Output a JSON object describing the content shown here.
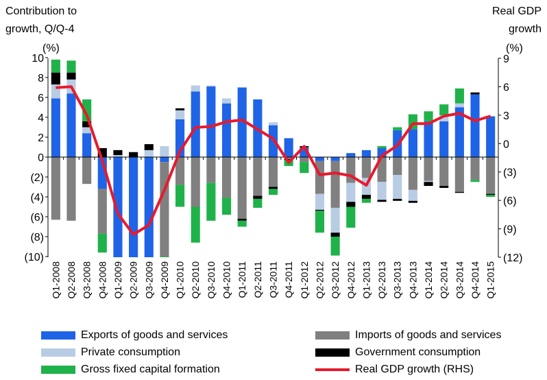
{
  "chart_data": {
    "type": "bar",
    "stacked": true,
    "left_axis_title_line1": "Contribution to",
    "left_axis_title_line2": "growth, Q/Q-4",
    "left_unit": "(%)",
    "right_axis_title_line1": "Real GDP",
    "right_axis_title_line2": "growth",
    "right_unit": "(%)",
    "ylim_left": [
      -10,
      10
    ],
    "ylim_right": [
      -12,
      9
    ],
    "yticks_left": [
      "10",
      "8",
      "6",
      "4",
      "2",
      "0",
      "(2)",
      "(4)",
      "(6)",
      "(8)",
      "(10)"
    ],
    "yticks_right": [
      "9",
      "6",
      "3",
      "0",
      "(3)",
      "(6)",
      "(9)",
      "(12)"
    ],
    "categories": [
      "Q1-2008",
      "Q2-2008",
      "Q3-2008",
      "Q4-2008",
      "Q1-2009",
      "Q2-2009",
      "Q3-2009",
      "Q4-2009",
      "Q1-2010",
      "Q2-2010",
      "Q3-2010",
      "Q4-2010",
      "Q1-2011",
      "Q2-2011",
      "Q3-2011",
      "Q4-2011",
      "Q1-2012",
      "Q2-2012",
      "Q3-2012",
      "Q4-2012",
      "Q1-2013",
      "Q2-2013",
      "Q3-2013",
      "Q4-2013",
      "Q1-2014",
      "Q2-2014",
      "Q3-2014",
      "Q4-2014",
      "Q1-2015"
    ],
    "series": [
      {
        "name": "Exports of goods and services",
        "color": "#1f64e6",
        "values": [
          5.9,
          6.4,
          2.4,
          -3.2,
          -10.5,
          -10.8,
          -10.5,
          -0.5,
          3.8,
          6.6,
          7.1,
          5.4,
          7.0,
          5.8,
          3.2,
          1.9,
          1.0,
          -0.4,
          -0.4,
          0.4,
          0.7,
          0.9,
          2.7,
          2.8,
          3.6,
          3.6,
          5.0,
          6.3,
          4.1
        ]
      },
      {
        "name": "Imports of goods and services",
        "color": "#808080",
        "values": [
          -6.3,
          -6.4,
          -2.7,
          -4.5,
          0,
          0,
          0,
          -9.5,
          -2.8,
          -5.0,
          -2.6,
          -4.1,
          -6.2,
          -3.9,
          -3.0,
          -0.2,
          -0.5,
          -3.3,
          -4.7,
          -2.6,
          -2.1,
          -2.5,
          -1.8,
          -3.3,
          -2.4,
          -2.9,
          -3.5,
          -2.3,
          -3.7
        ]
      },
      {
        "name": "Private consumption",
        "color": "#b8cce4",
        "values": [
          1.4,
          1.4,
          0.6,
          0,
          0.2,
          0,
          0.7,
          1.1,
          0.9,
          0.6,
          0.1,
          0.5,
          0,
          0,
          0.3,
          0,
          0,
          -1.6,
          -2.5,
          -1.9,
          -1.7,
          -1.8,
          -2.4,
          -1.1,
          -0.1,
          0.6,
          0.4,
          0,
          0
        ]
      },
      {
        "name": "Government consumption",
        "color": "#000000",
        "values": [
          1.2,
          0.7,
          0.6,
          0.9,
          0.5,
          0.5,
          0.6,
          0,
          0.2,
          0,
          0,
          0,
          -0.2,
          -0.3,
          -0.2,
          -0.1,
          0.1,
          -0.1,
          -0.4,
          -0.5,
          -0.4,
          -0.2,
          -0.2,
          -0.2,
          -0.4,
          -0.2,
          -0.1,
          0.2,
          -0.1
        ]
      },
      {
        "name": "Gross fixed capital formation",
        "color": "#1fb24a",
        "values": [
          1.3,
          1.2,
          2.2,
          -1.9,
          0,
          0,
          0,
          -0.1,
          -2.2,
          -3.6,
          -3.8,
          -1.7,
          -0.6,
          -0.9,
          -0.6,
          -0.6,
          -1.1,
          -2.2,
          -1.9,
          -2.1,
          -0.4,
          0.2,
          0.3,
          1.5,
          1.0,
          1.1,
          1.5,
          -0.2,
          -0.2
        ]
      },
      {
        "name": "Real GDP growth (RHS)",
        "color": "#e8192c",
        "axis": "right",
        "type": "line",
        "values": [
          5.9,
          6.0,
          3.0,
          -1.8,
          -7.4,
          -9.6,
          -8.6,
          -4.9,
          -0.8,
          1.7,
          1.8,
          2.3,
          2.5,
          1.5,
          0.5,
          -2.0,
          -0.3,
          -3.3,
          -3.1,
          -3.4,
          -4.4,
          -1.3,
          -0.2,
          2.1,
          2.1,
          2.9,
          3.2,
          2.4,
          2.9
        ]
      }
    ]
  }
}
